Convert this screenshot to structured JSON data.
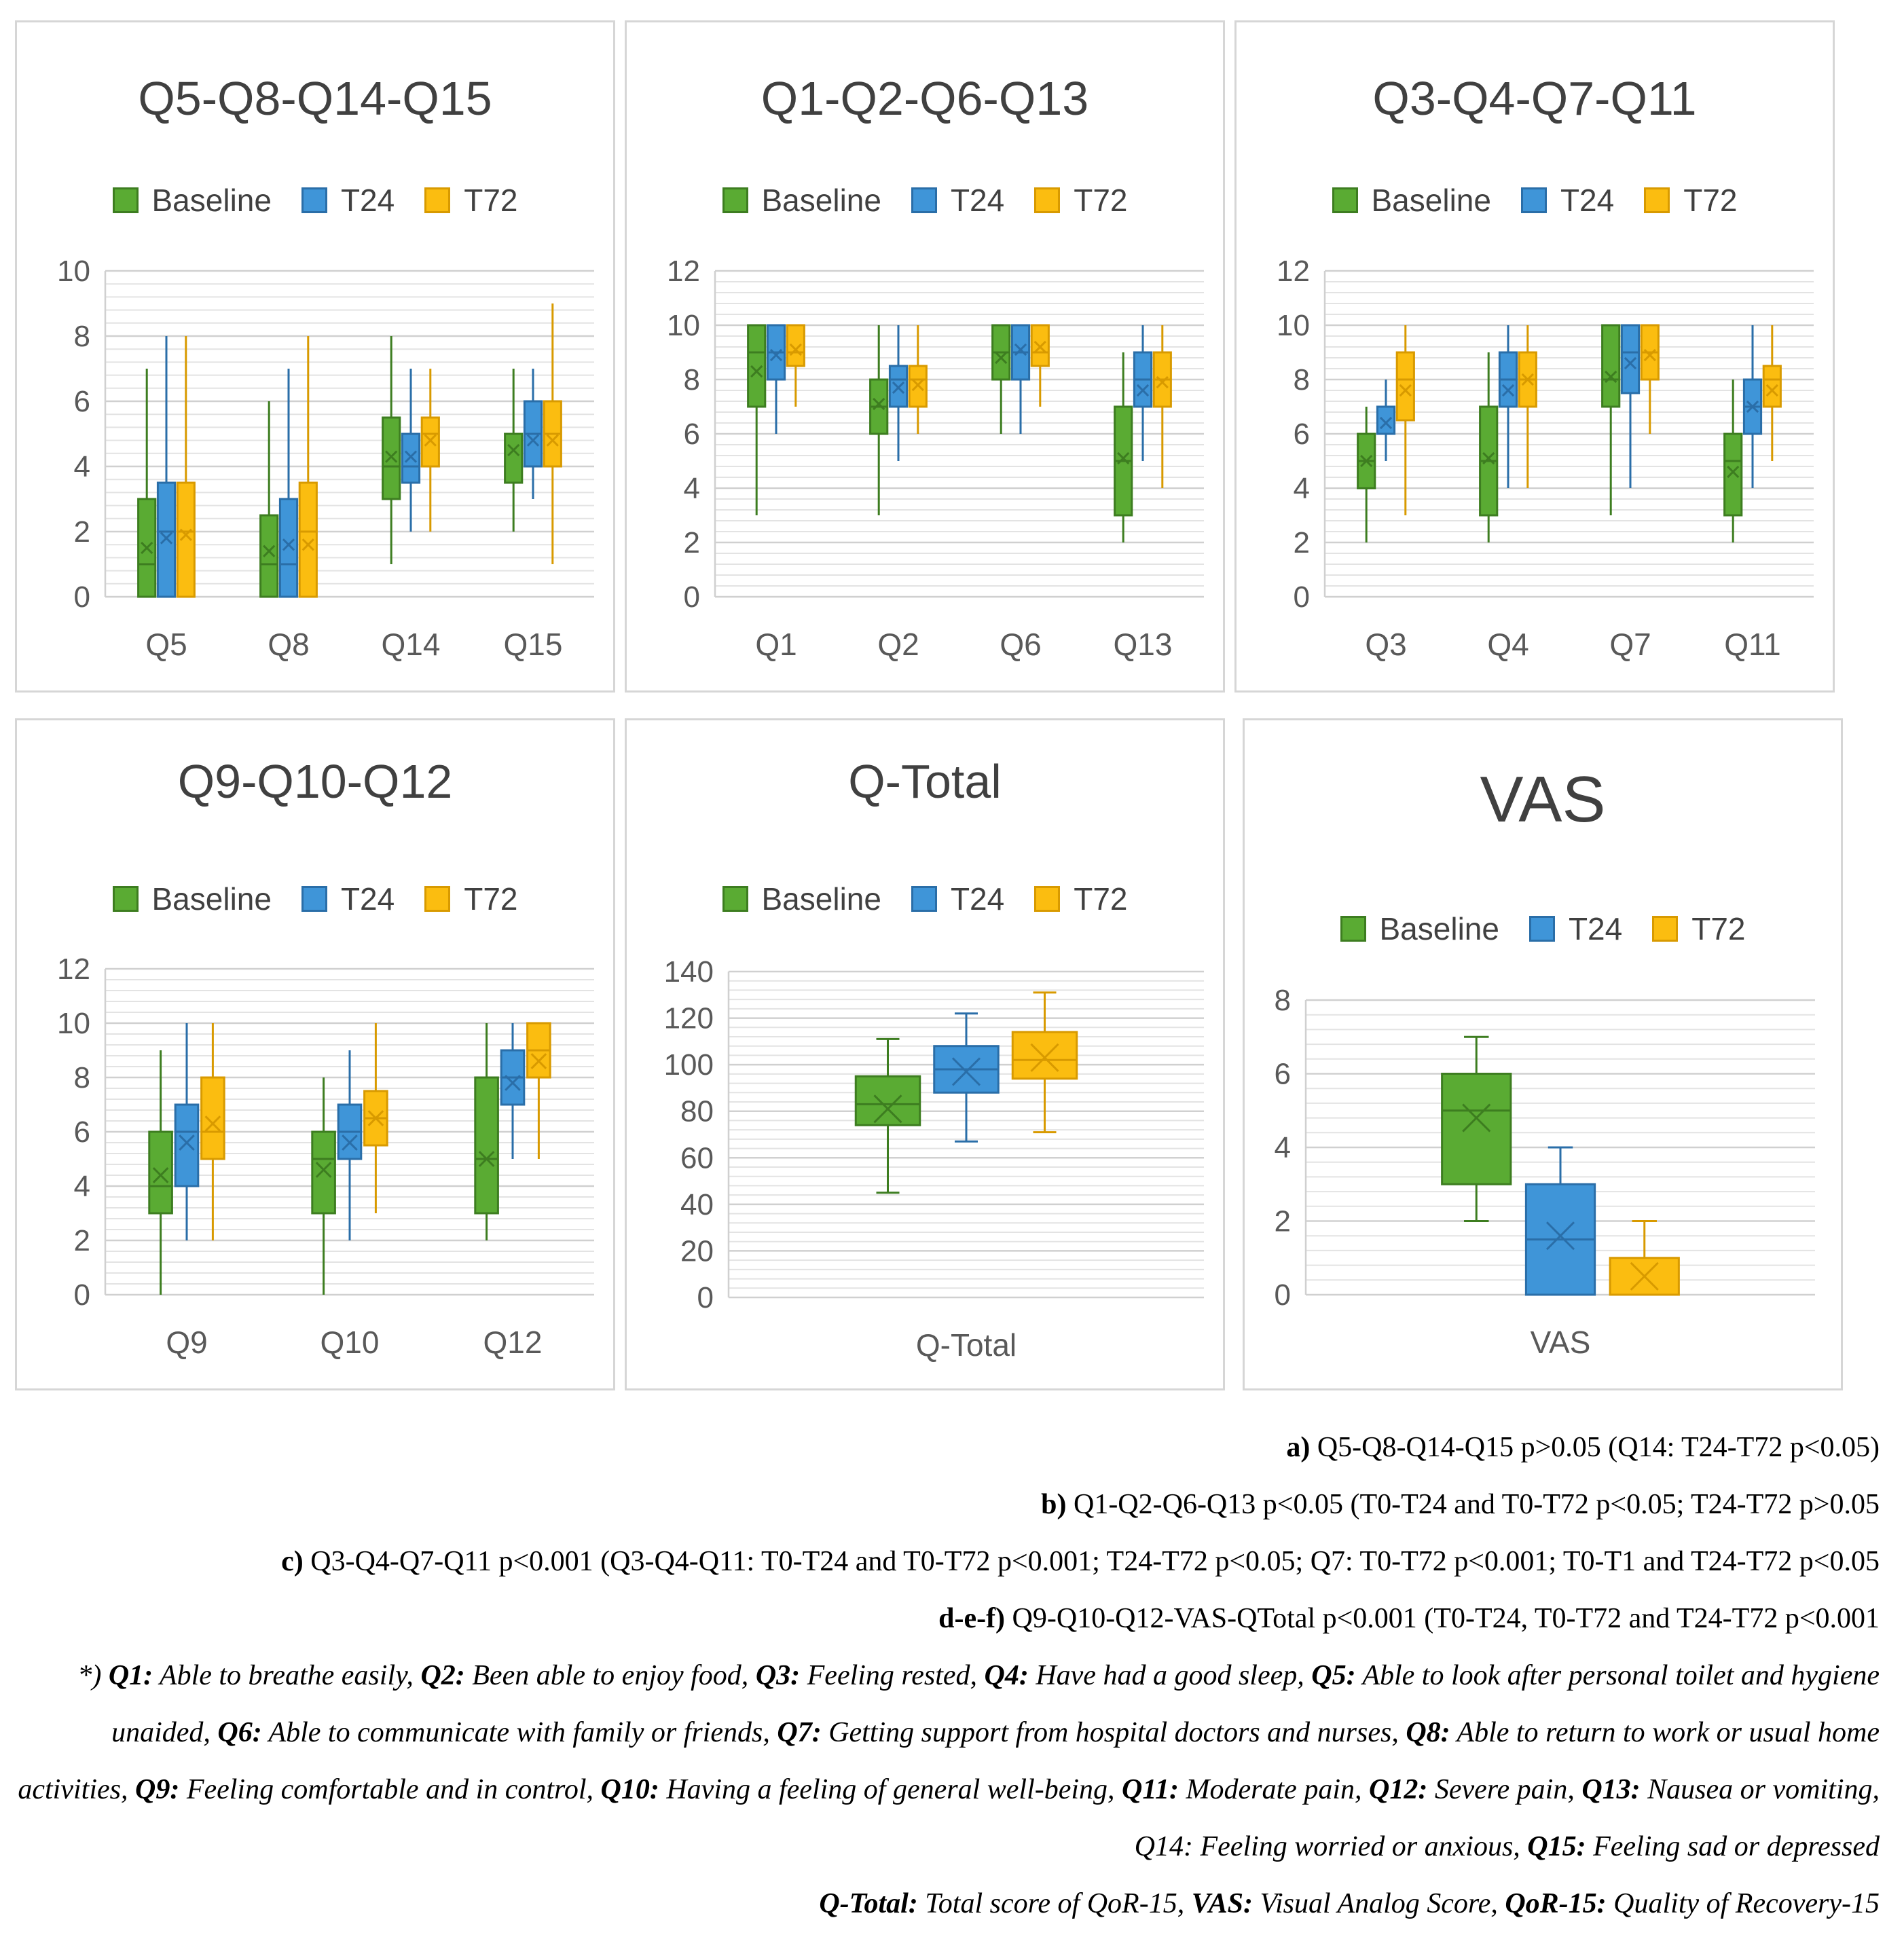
{
  "colors": {
    "Baseline": "#5aab33",
    "T24": "#3f95d8",
    "T72": "#fbbd10",
    "Baseline_edge": "#3d7d20",
    "T24_edge": "#2a6ea8",
    "T72_edge": "#d89a00"
  },
  "chart_data": [
    {
      "type": "box",
      "title": "Q5-Q8-Q14-Q15",
      "legend": [
        "Baseline",
        "T24",
        "T72"
      ],
      "categories": [
        "Q5",
        "Q8",
        "Q14",
        "Q15"
      ],
      "ylim": [
        0,
        10
      ],
      "yticks": [
        0,
        2,
        4,
        6,
        8,
        10
      ],
      "series": [
        {
          "name": "Baseline",
          "boxes": [
            {
              "min": 0,
              "q1": 0,
              "median": 1,
              "q3": 3,
              "max": 7,
              "mean": 1.5
            },
            {
              "min": 0,
              "q1": 0,
              "median": 1,
              "q3": 2.5,
              "max": 6,
              "mean": 1.4
            },
            {
              "min": 1,
              "q1": 3,
              "median": 4,
              "q3": 5.5,
              "max": 8,
              "mean": 4.3
            },
            {
              "min": 2,
              "q1": 3.5,
              "median": 5,
              "q3": 5,
              "max": 7,
              "mean": 4.5
            }
          ]
        },
        {
          "name": "T24",
          "boxes": [
            {
              "min": 0,
              "q1": 0,
              "median": 2,
              "q3": 3.5,
              "max": 8,
              "mean": 1.8
            },
            {
              "min": 0,
              "q1": 0,
              "median": 1,
              "q3": 3,
              "max": 7,
              "mean": 1.6
            },
            {
              "min": 2,
              "q1": 3.5,
              "median": 4,
              "q3": 5,
              "max": 7,
              "mean": 4.3
            },
            {
              "min": 3,
              "q1": 4,
              "median": 5,
              "q3": 6,
              "max": 7,
              "mean": 4.8
            }
          ]
        },
        {
          "name": "T72",
          "boxes": [
            {
              "min": 0,
              "q1": 0,
              "median": 2,
              "q3": 3.5,
              "max": 8,
              "mean": 1.9
            },
            {
              "min": 0,
              "q1": 0,
              "median": 2,
              "q3": 3.5,
              "max": 8,
              "mean": 1.6
            },
            {
              "min": 2,
              "q1": 4,
              "median": 5,
              "q3": 5.5,
              "max": 7,
              "mean": 4.8
            },
            {
              "min": 1,
              "q1": 4,
              "median": 5,
              "q3": 6,
              "max": 9,
              "mean": 4.8
            }
          ]
        }
      ]
    },
    {
      "type": "box",
      "title": "Q1-Q2-Q6-Q13",
      "legend": [
        "Baseline",
        "T24",
        "T72"
      ],
      "categories": [
        "Q1",
        "Q2",
        "Q6",
        "Q13"
      ],
      "ylim": [
        0,
        12
      ],
      "yticks": [
        0,
        2,
        4,
        6,
        8,
        10,
        12
      ],
      "series": [
        {
          "name": "Baseline",
          "boxes": [
            {
              "min": 3,
              "q1": 7,
              "median": 9,
              "q3": 10,
              "max": 10,
              "mean": 8.3
            },
            {
              "min": 3,
              "q1": 6,
              "median": 7,
              "q3": 8,
              "max": 10,
              "mean": 7.1
            },
            {
              "min": 6,
              "q1": 8,
              "median": 9,
              "q3": 10,
              "max": 10,
              "mean": 8.8
            },
            {
              "min": 2,
              "q1": 3,
              "median": 5,
              "q3": 7,
              "max": 9,
              "mean": 5.1
            }
          ]
        },
        {
          "name": "T24",
          "boxes": [
            {
              "min": 6,
              "q1": 8,
              "median": 9,
              "q3": 10,
              "max": 10,
              "mean": 8.9
            },
            {
              "min": 5,
              "q1": 7,
              "median": 8,
              "q3": 8.5,
              "max": 10,
              "mean": 7.7
            },
            {
              "min": 6,
              "q1": 8,
              "median": 9,
              "q3": 10,
              "max": 10,
              "mean": 9.1
            },
            {
              "min": 5,
              "q1": 7,
              "median": 8,
              "q3": 9,
              "max": 10,
              "mean": 7.6
            }
          ]
        },
        {
          "name": "T72",
          "boxes": [
            {
              "min": 7,
              "q1": 8.5,
              "median": 9,
              "q3": 10,
              "max": 10,
              "mean": 9.1
            },
            {
              "min": 6,
              "q1": 7,
              "median": 8,
              "q3": 8.5,
              "max": 10,
              "mean": 7.8
            },
            {
              "min": 7,
              "q1": 8.5,
              "median": 9,
              "q3": 10,
              "max": 10,
              "mean": 9.2
            },
            {
              "min": 4,
              "q1": 7,
              "median": 8,
              "q3": 9,
              "max": 10,
              "mean": 7.9
            }
          ]
        }
      ]
    },
    {
      "type": "box",
      "title": "Q3-Q4-Q7-Q11",
      "legend": [
        "Baseline",
        "T24",
        "T72"
      ],
      "categories": [
        "Q3",
        "Q4",
        "Q7",
        "Q11"
      ],
      "ylim": [
        0,
        12
      ],
      "yticks": [
        0,
        2,
        4,
        6,
        8,
        10,
        12
      ],
      "series": [
        {
          "name": "Baseline",
          "boxes": [
            {
              "min": 2,
              "q1": 4,
              "median": 5,
              "q3": 6,
              "max": 7,
              "mean": 5.0
            },
            {
              "min": 2,
              "q1": 3,
              "median": 5,
              "q3": 7,
              "max": 9,
              "mean": 5.1
            },
            {
              "min": 3,
              "q1": 7,
              "median": 8,
              "q3": 10,
              "max": 10,
              "mean": 8.1
            },
            {
              "min": 2,
              "q1": 3,
              "median": 5,
              "q3": 6,
              "max": 8,
              "mean": 4.6
            }
          ]
        },
        {
          "name": "T24",
          "boxes": [
            {
              "min": 5,
              "q1": 6,
              "median": 7,
              "q3": 7,
              "max": 8,
              "mean": 6.4
            },
            {
              "min": 4,
              "q1": 7,
              "median": 8,
              "q3": 9,
              "max": 10,
              "mean": 7.6
            },
            {
              "min": 4,
              "q1": 7.5,
              "median": 9,
              "q3": 10,
              "max": 10,
              "mean": 8.6
            },
            {
              "min": 4,
              "q1": 6,
              "median": 7,
              "q3": 8,
              "max": 10,
              "mean": 7.0
            }
          ]
        },
        {
          "name": "T72",
          "boxes": [
            {
              "min": 3,
              "q1": 6.5,
              "median": 8,
              "q3": 9,
              "max": 10,
              "mean": 7.6
            },
            {
              "min": 4,
              "q1": 7,
              "median": 8,
              "q3": 9,
              "max": 10,
              "mean": 8.0
            },
            {
              "min": 6,
              "q1": 8,
              "median": 9,
              "q3": 10,
              "max": 10,
              "mean": 8.9
            },
            {
              "min": 5,
              "q1": 7,
              "median": 8,
              "q3": 8.5,
              "max": 10,
              "mean": 7.6
            }
          ]
        }
      ]
    },
    {
      "type": "box",
      "title": "Q9-Q10-Q12",
      "legend": [
        "Baseline",
        "T24",
        "T72"
      ],
      "categories": [
        "Q9",
        "Q10",
        "Q12"
      ],
      "ylim": [
        0,
        12
      ],
      "yticks": [
        0,
        2,
        4,
        6,
        8,
        10,
        12
      ],
      "series": [
        {
          "name": "Baseline",
          "boxes": [
            {
              "min": 0,
              "q1": 3,
              "median": 4,
              "q3": 6,
              "max": 9,
              "mean": 4.4
            },
            {
              "min": 0,
              "q1": 3,
              "median": 5,
              "q3": 6,
              "max": 8,
              "mean": 4.6
            },
            {
              "min": 2,
              "q1": 3,
              "median": 5,
              "q3": 8,
              "max": 10,
              "mean": 5.0
            }
          ]
        },
        {
          "name": "T24",
          "boxes": [
            {
              "min": 2,
              "q1": 4,
              "median": 6,
              "q3": 7,
              "max": 10,
              "mean": 5.6
            },
            {
              "min": 2,
              "q1": 5,
              "median": 6,
              "q3": 7,
              "max": 9,
              "mean": 5.6
            },
            {
              "min": 5,
              "q1": 7,
              "median": 8,
              "q3": 9,
              "max": 10,
              "mean": 7.8
            }
          ]
        },
        {
          "name": "T72",
          "boxes": [
            {
              "min": 2,
              "q1": 5,
              "median": 6,
              "q3": 8,
              "max": 10,
              "mean": 6.3
            },
            {
              "min": 3,
              "q1": 5.5,
              "median": 6.5,
              "q3": 7.5,
              "max": 10,
              "mean": 6.5
            },
            {
              "min": 5,
              "q1": 8,
              "median": 9,
              "q3": 10,
              "max": 10,
              "mean": 8.6
            }
          ]
        }
      ]
    },
    {
      "type": "box",
      "title": "Q-Total",
      "legend": [
        "Baseline",
        "T24",
        "T72"
      ],
      "categories": [
        "Q-Total"
      ],
      "ylim": [
        0,
        140
      ],
      "yticks": [
        0,
        20,
        40,
        60,
        80,
        100,
        120,
        140
      ],
      "series": [
        {
          "name": "Baseline",
          "boxes": [
            {
              "min": 45,
              "q1": 74,
              "median": 83,
              "q3": 95,
              "max": 111,
              "mean": 81
            }
          ]
        },
        {
          "name": "T24",
          "boxes": [
            {
              "min": 67,
              "q1": 88,
              "median": 98,
              "q3": 108,
              "max": 122,
              "mean": 97
            }
          ]
        },
        {
          "name": "T72",
          "boxes": [
            {
              "min": 71,
              "q1": 94,
              "median": 102,
              "q3": 114,
              "max": 131,
              "mean": 103
            }
          ]
        }
      ]
    },
    {
      "type": "box",
      "title": "VAS",
      "legend": [
        "Baseline",
        "T24",
        "T72"
      ],
      "categories": [
        "VAS"
      ],
      "ylim": [
        0,
        8
      ],
      "yticks": [
        0,
        2,
        4,
        6,
        8
      ],
      "series": [
        {
          "name": "Baseline",
          "boxes": [
            {
              "min": 2,
              "q1": 3,
              "median": 5,
              "q3": 6,
              "max": 7,
              "mean": 4.8
            }
          ]
        },
        {
          "name": "T24",
          "boxes": [
            {
              "min": 0,
              "q1": 0,
              "median": 1.5,
              "q3": 3,
              "max": 4,
              "mean": 1.6
            }
          ]
        },
        {
          "name": "T72",
          "boxes": [
            {
              "min": 0,
              "q1": 0,
              "median": 0,
              "q3": 1,
              "max": 2,
              "mean": 0.5
            }
          ]
        }
      ]
    }
  ],
  "notes": [
    {
      "label": "a)",
      "text": " Q5-Q8-Q14-Q15 p>0.05 (Q14: T24-T72 p<0.05)"
    },
    {
      "label": "b)",
      "text": " Q1-Q2-Q6-Q13 p<0.05 (T0-T24 and T0-T72 p<0.05; T24-T72 p>0.05"
    },
    {
      "label": "c)",
      "text": " Q3-Q4-Q7-Q11 p<0.001 (Q3-Q4-Q11: T0-T24 and T0-T72 p<0.001; T24-T72 p<0.05; Q7: T0-T72 p<0.001; T0-T1 and T24-T72 p<0.05"
    },
    {
      "label": "d-e-f)",
      "text": " Q9-Q10-Q12-VAS-QTotal p<0.001 (T0-T24, T0-T72 and T24-T72 p<0.001"
    }
  ],
  "abbreviations_prefix": "*) ",
  "abbreviations": [
    {
      "term": "Q1:",
      "desc": " Able to breathe easily, "
    },
    {
      "term": "Q2:",
      "desc": " Been able to enjoy food, "
    },
    {
      "term": "Q3:",
      "desc": " Feeling rested, "
    },
    {
      "term": "Q4:",
      "desc": " Have had a good sleep, "
    },
    {
      "term": "Q5:",
      "desc": " Able to look after personal toilet and hygiene unaided, "
    },
    {
      "term": "Q6:",
      "desc": " Able to communicate with family or friends, "
    },
    {
      "term": "Q7:",
      "desc": " Getting support from hospital doctors and nurses, "
    },
    {
      "term": "Q8:",
      "desc": " Able to return to work or usual home activities, "
    },
    {
      "term": "Q9:",
      "desc": " Feeling comfortable and in control, "
    },
    {
      "term": "Q10:",
      "desc": " Having a feeling of general well-being, "
    },
    {
      "term": "Q11:",
      "desc": " Moderate pain, "
    },
    {
      "term": "Q12:",
      "desc": " Severe pain, "
    },
    {
      "term": "Q13:",
      "desc": " Nausea or vomiting, "
    },
    {
      "term": "Q14:",
      "desc": " Feeling worried or anxious, ",
      "plain": true
    },
    {
      "term": "Q15:",
      "desc": " Feeling sad or depressed"
    },
    {
      "term": "Q-Total:",
      "desc": " Total score of QoR-15, ",
      "break": true
    },
    {
      "term": "VAS:",
      "desc": " Visual Analog Score, "
    },
    {
      "term": "QoR-15:",
      "desc": " Quality of Recovery-15"
    }
  ]
}
